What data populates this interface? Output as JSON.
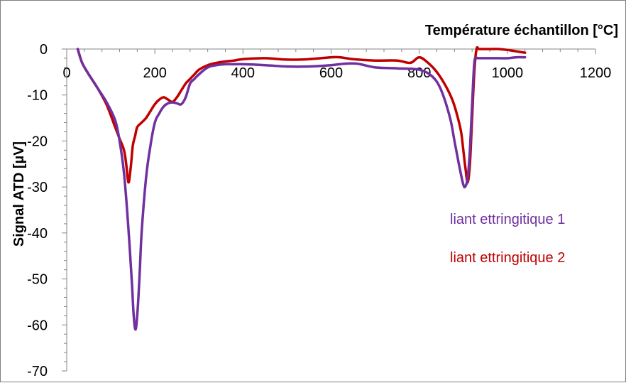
{
  "chart_data": {
    "type": "line",
    "title": "",
    "xlabel": "Température échantillon [°C]",
    "ylabel": "Signal ATD [µV]",
    "xlim": [
      0,
      1200
    ],
    "ylim": [
      -70,
      0
    ],
    "x_ticks": [
      0,
      200,
      400,
      600,
      800,
      1000,
      1200
    ],
    "y_ticks": [
      0,
      -10,
      -20,
      -30,
      -40,
      -50,
      -60,
      -70
    ],
    "grid": false,
    "legend_position": "right, inside plot",
    "series": [
      {
        "name": "liant ettringitique 1",
        "color": "#7030A0",
        "x": [
          25,
          35,
          50,
          70,
          90,
          110,
          120,
          130,
          140,
          148,
          152,
          156,
          160,
          165,
          170,
          180,
          190,
          200,
          210,
          220,
          230,
          240,
          250,
          260,
          270,
          280,
          290,
          300,
          320,
          340,
          360,
          380,
          400,
          450,
          500,
          550,
          600,
          630,
          660,
          700,
          750,
          800,
          830,
          850,
          870,
          880,
          890,
          900,
          905,
          910,
          915,
          920,
          925,
          930,
          935,
          940,
          950,
          980,
          1000,
          1020,
          1040
        ],
        "y": [
          0,
          -3,
          -5.5,
          -8.5,
          -11.5,
          -15.5,
          -20,
          -27,
          -39,
          -51,
          -58,
          -61,
          -58,
          -50,
          -40,
          -28,
          -21,
          -16,
          -14,
          -12.5,
          -11.8,
          -11.6,
          -11.8,
          -12,
          -10.5,
          -7.5,
          -6.5,
          -5.5,
          -4,
          -3.5,
          -3.3,
          -3.3,
          -3.3,
          -3.5,
          -3.8,
          -3.8,
          -3.5,
          -3.2,
          -3.2,
          -4,
          -4.2,
          -4.5,
          -6,
          -9,
          -15,
          -20,
          -25,
          -29.5,
          -29.8,
          -28,
          -22,
          -12,
          -3,
          -2,
          -2,
          -2,
          -2,
          -2,
          -2,
          -1.8,
          -1.8
        ]
      },
      {
        "name": "liant ettringitique 2",
        "color": "#C00000",
        "x": [
          25,
          35,
          50,
          70,
          90,
          110,
          120,
          130,
          135,
          140,
          145,
          150,
          155,
          160,
          170,
          180,
          190,
          200,
          210,
          220,
          230,
          240,
          250,
          260,
          270,
          280,
          290,
          300,
          320,
          340,
          360,
          380,
          400,
          450,
          500,
          550,
          600,
          620,
          650,
          700,
          750,
          780,
          800,
          820,
          840,
          860,
          875,
          885,
          895,
          900,
          905,
          910,
          915,
          920,
          925,
          930,
          935,
          940,
          960,
          980,
          1000,
          1020,
          1040
        ],
        "y": [
          0,
          -3,
          -5.5,
          -8.5,
          -12,
          -17,
          -19.5,
          -22,
          -25,
          -29,
          -26,
          -21,
          -19,
          -17,
          -16,
          -15,
          -13.5,
          -12,
          -11,
          -10.5,
          -11,
          -11.5,
          -10.5,
          -9,
          -7.5,
          -6.5,
          -5.5,
          -4.5,
          -3.5,
          -3,
          -2.7,
          -2.5,
          -2.2,
          -2,
          -2.3,
          -2.2,
          -1.8,
          -1.8,
          -2.2,
          -2.5,
          -2.5,
          -3,
          -1.8,
          -3,
          -5,
          -8,
          -11,
          -14,
          -18,
          -22,
          -26,
          -29,
          -25,
          -15,
          -5,
          0,
          0,
          0,
          0,
          0,
          -0.2,
          -0.5,
          -0.8
        ]
      }
    ]
  }
}
